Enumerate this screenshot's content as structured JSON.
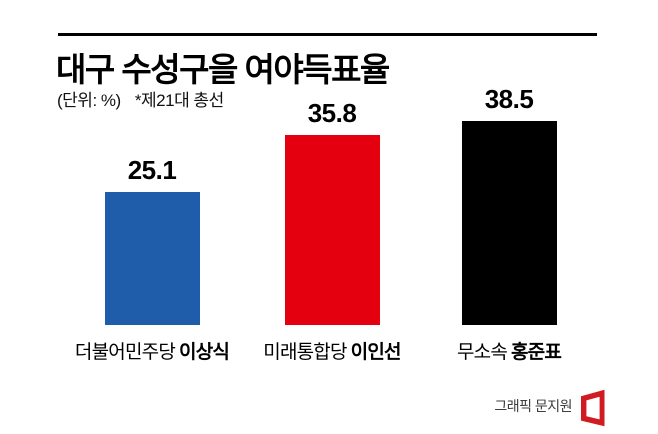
{
  "header": {
    "title": "대구 수성구을 여야득표율",
    "unit_label": "(단위: %)",
    "note": "*제21대 총선"
  },
  "chart_data": {
    "type": "bar",
    "title": "대구 수성구을 여야득표율",
    "unit": "%",
    "note": "*제21대 총선",
    "categories": [
      "더불어민주당 이상식",
      "미래통합당 이인선",
      "무소속 홍준표"
    ],
    "values": [
      25.1,
      35.8,
      38.5
    ],
    "ylim": [
      0,
      40
    ],
    "grid": false,
    "legend_position": "none",
    "axis_lines": "none",
    "bars": [
      {
        "party": "더불어민주당",
        "candidate": "이상식",
        "value": 25.1,
        "value_label": "25.1",
        "color": "#1f5ca9"
      },
      {
        "party": "미래통합당",
        "candidate": "이인선",
        "value": 35.8,
        "value_label": "35.8",
        "color": "#e4000f"
      },
      {
        "party": "무소속",
        "candidate": "홍준표",
        "value": 38.5,
        "value_label": "38.5",
        "color": "#000000"
      }
    ]
  },
  "footer": {
    "credit": "그래픽 문지원",
    "logo_color": "#d11a21"
  },
  "colors": {
    "bar_blue": "#1f5ca9",
    "bar_red": "#e4000f",
    "bar_black": "#000000",
    "top_rule": "#000000",
    "credit_text": "#3d3d3d"
  }
}
